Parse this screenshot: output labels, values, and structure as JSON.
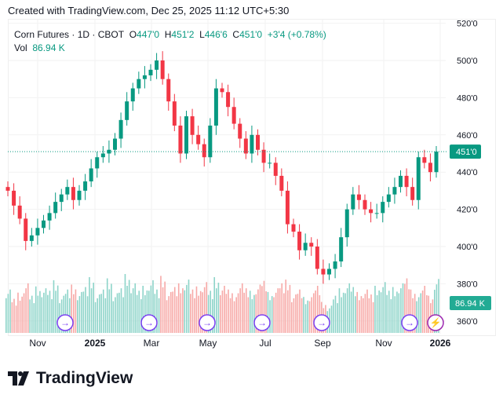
{
  "header": {
    "credit": "Created with TradingView.com, Dec 25, 2025 11:12 UTC+5:30"
  },
  "legend": {
    "symbol": "Corn Futures · 1D · CBOT",
    "o_label": "O",
    "open": "447'0",
    "h_label": "H",
    "high": "451'2",
    "l_label": "L",
    "low": "446'6",
    "c_label": "C",
    "close": "451'0",
    "change": "+3'4 (+0.78%)",
    "vol_label": "Vol",
    "vol": "86.94 K"
  },
  "colors": {
    "up": "#089981",
    "down": "#f23645",
    "vol_up": "#8dd4c9",
    "vol_down": "#f7a9a7",
    "event": "#7b3ff2",
    "accent": "#22ab94"
  },
  "chart_data": {
    "type": "candlestick",
    "period": "weekly-sampled",
    "price_ticks": [
      "520'0",
      "500'0",
      "480'0",
      "460'0",
      "440'0",
      "420'0",
      "400'0",
      "380'0",
      "360'0"
    ],
    "price_tick_values": [
      520,
      500,
      480,
      460,
      440,
      420,
      400,
      380,
      360
    ],
    "ylim": [
      360,
      520
    ],
    "time_labels": [
      "Nov",
      "2025",
      "Mar",
      "May",
      "Jul",
      "Sep",
      "Nov",
      "2026"
    ],
    "last_price_label": "451'0",
    "last_price": 451,
    "volume_label": "86.94 K",
    "close": [
      430,
      422,
      415,
      403,
      406,
      410,
      414,
      418,
      424,
      428,
      432,
      425,
      430,
      435,
      442,
      448,
      450,
      452,
      458,
      468,
      478,
      485,
      490,
      492,
      495,
      500,
      490,
      478,
      465,
      450,
      470,
      460,
      455,
      448,
      465,
      485,
      483,
      475,
      466,
      458,
      450,
      460,
      452,
      445,
      445,
      438,
      430,
      412,
      408,
      398,
      402,
      400,
      388,
      385,
      388,
      392,
      405,
      420,
      428,
      425,
      420,
      418,
      418,
      424,
      428,
      432,
      438,
      432,
      425,
      448,
      445,
      440,
      451
    ],
    "volume": [
      70,
      55,
      65,
      80,
      60,
      75,
      72,
      68,
      85,
      60,
      70,
      78,
      66,
      74,
      90,
      62,
      70,
      88,
      64,
      72,
      95,
      80,
      68,
      76,
      85,
      70,
      92,
      66,
      74,
      80,
      86,
      70,
      75,
      82,
      68,
      90,
      76,
      70,
      64,
      80,
      72,
      68,
      78,
      84,
      66,
      72,
      80,
      86,
      62,
      70,
      58,
      64,
      76,
      50,
      44,
      60,
      72,
      80,
      74,
      66,
      70,
      62,
      76,
      82,
      68,
      74,
      80,
      88,
      70,
      64,
      76,
      60,
      87
    ],
    "event_markers": [
      "dividend",
      "dividend",
      "dividend",
      "dividend",
      "dividend",
      "dividend",
      "earnings"
    ]
  },
  "branding": {
    "logo_text": "TradingView"
  }
}
